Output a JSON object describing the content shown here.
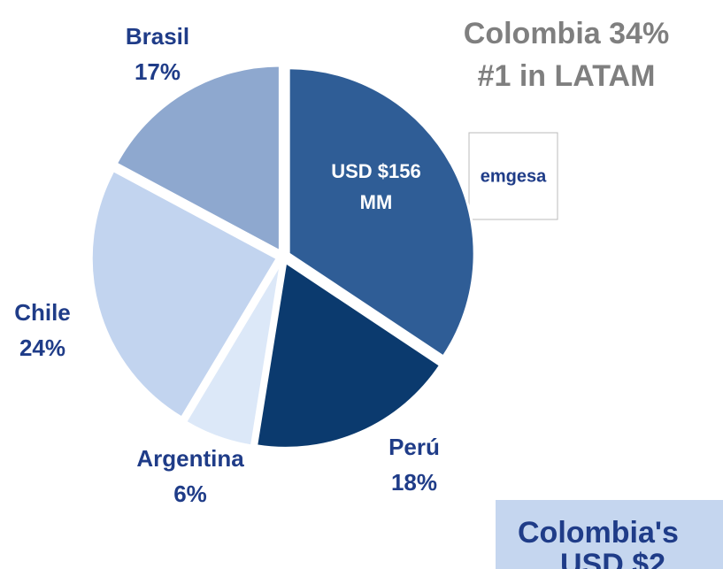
{
  "chart_data": {
    "type": "pie",
    "categories": [
      "Colombia",
      "Perú",
      "Argentina",
      "Chile",
      "Brasil"
    ],
    "values": [
      34,
      18,
      6,
      24,
      17
    ],
    "value_labels": [
      "34%",
      "18%",
      "6%",
      "24%",
      "17%"
    ],
    "colors": [
      "#2f5d96",
      "#0b3a6e",
      "#dce8f8",
      "#c2d4ef",
      "#8ea8cf"
    ],
    "annotations": [
      "#1 in LATAM",
      "USD $156",
      "MM",
      "emgesa",
      "Colombia's",
      "USD $2"
    ]
  }
}
